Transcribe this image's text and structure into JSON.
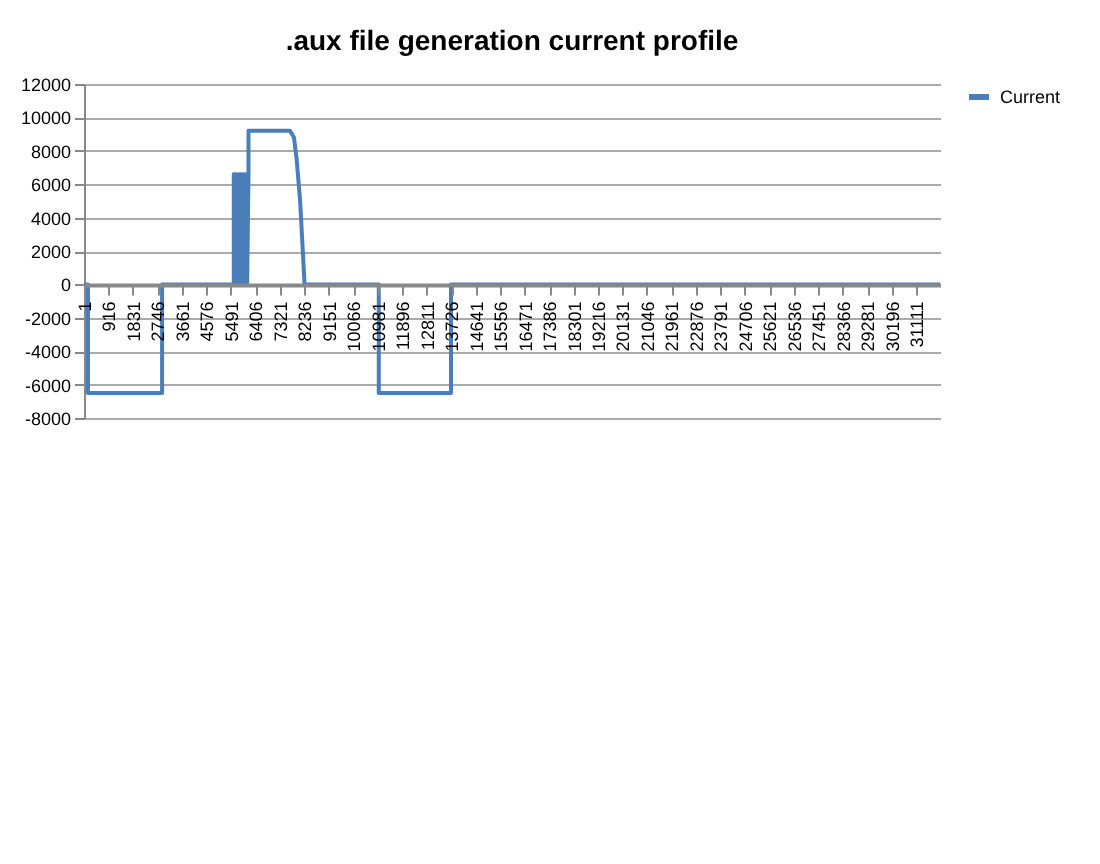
{
  "chart_data": {
    "type": "line",
    "title": ".aux file generation current profile",
    "series": [
      {
        "name": "Current",
        "color": "#4a7ebb",
        "x": [
          1,
          150,
          150,
          2920,
          2920,
          5600,
          5600,
          5650,
          5650,
          5700,
          5700,
          5750,
          5750,
          5800,
          5800,
          5850,
          5850,
          5900,
          5900,
          5950,
          5950,
          6000,
          6000,
          6050,
          6050,
          6100,
          6100,
          6150,
          6150,
          7700,
          7850,
          7950,
          8080,
          8180,
          8246,
          11020,
          11020,
          13720,
          13720,
          32000
        ],
        "values": [
          0,
          0,
          -6500,
          -6500,
          0,
          0,
          6600,
          6600,
          0,
          6600,
          0,
          6600,
          0,
          6600,
          0,
          6600,
          0,
          6600,
          0,
          6600,
          0,
          6600,
          0,
          6600,
          0,
          6600,
          0,
          6600,
          9200,
          9200,
          8800,
          7500,
          5000,
          2000,
          0,
          0,
          -6500,
          -6500,
          0,
          0
        ]
      }
    ],
    "xlim": [
      1,
      32000
    ],
    "xticks": [
      1,
      916,
      1831,
      2746,
      3661,
      4576,
      5491,
      6406,
      7321,
      8236,
      9151,
      10066,
      10981,
      11896,
      12811,
      13726,
      14641,
      15556,
      16471,
      17386,
      18301,
      19216,
      20131,
      21046,
      21961,
      22876,
      23791,
      24706,
      25621,
      26536,
      27451,
      28366,
      29281,
      30196,
      31111
    ],
    "ylim": [
      -8000,
      12000
    ],
    "yticks": [
      -8000,
      -6000,
      -4000,
      -2000,
      0,
      2000,
      4000,
      6000,
      8000,
      10000,
      12000
    ],
    "grid": "y",
    "legend": "right",
    "marker": "none",
    "line_style": "solid"
  }
}
